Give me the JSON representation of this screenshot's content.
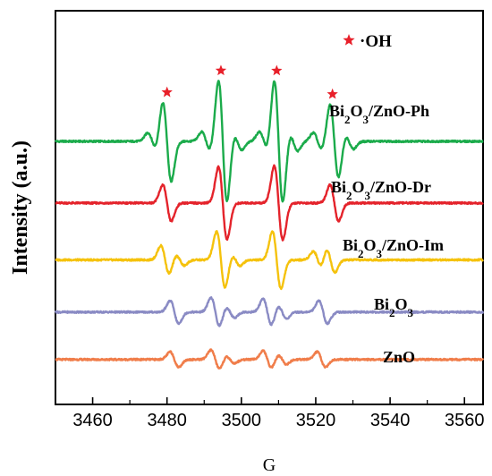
{
  "chart_data": {
    "type": "line",
    "title": "",
    "xlabel": "G",
    "ylabel": "Intensity (a.u.)",
    "xlim": [
      3450,
      3565
    ],
    "x_ticks": [
      "3460",
      "3480",
      "3500",
      "3520",
      "3540",
      "3560"
    ],
    "y_ticks_shown": false,
    "grid": false,
    "legend": {
      "placement": "top-right",
      "marker": "red-star",
      "color": "#e8202a",
      "label": "·OH"
    },
    "oh_marker_positions_G": [
      3480,
      3494.5,
      3509.5,
      3524.5
    ],
    "series": [
      {
        "name": "Bi2O3/ZnO-Ph",
        "name_main": "Bi",
        "name_sub1": "2",
        "name_mid": "O",
        "name_sub2": "3",
        "name_tail": "/ZnO-Ph",
        "color": "#1bab4b",
        "baseline": 0,
        "peaks": [
          {
            "x": 3476.0,
            "a": 0.9
          },
          {
            "x": 3480.0,
            "a": 4.2
          },
          {
            "x": 3490.5,
            "a": 1.0
          },
          {
            "x": 3495.0,
            "a": 6.4
          },
          {
            "x": 3499.0,
            "a": 0.9
          },
          {
            "x": 3506.0,
            "a": 1.0
          },
          {
            "x": 3510.0,
            "a": 6.5
          },
          {
            "x": 3514.0,
            "a": 1.0
          },
          {
            "x": 3520.5,
            "a": 0.9
          },
          {
            "x": 3525.0,
            "a": 3.9
          },
          {
            "x": 3529.0,
            "a": 0.8
          }
        ]
      },
      {
        "name": "Bi2O3/ZnO-Dr",
        "name_main": "Bi",
        "name_sub1": "2",
        "name_mid": "O",
        "name_sub2": "3",
        "name_tail": "/ZnO-Dr",
        "color": "#e4232b",
        "baseline": -6.5,
        "peaks": [
          {
            "x": 3480.0,
            "a": 1.9
          },
          {
            "x": 3495.0,
            "a": 3.8
          },
          {
            "x": 3510.0,
            "a": 3.9
          },
          {
            "x": 3525.0,
            "a": 1.9
          }
        ]
      },
      {
        "name": "Bi2O3/ZnO-Im",
        "name_main": "Bi",
        "name_sub1": "2",
        "name_mid": "O",
        "name_sub2": "3",
        "name_tail": "/ZnO-Im",
        "color": "#f5c20c",
        "baseline": -12.5,
        "peaks": [
          {
            "x": 3479.5,
            "a": 1.5
          },
          {
            "x": 3483.5,
            "a": 0.6
          },
          {
            "x": 3494.5,
            "a": 3.0
          },
          {
            "x": 3498.5,
            "a": 0.6
          },
          {
            "x": 3509.5,
            "a": 3.0
          },
          {
            "x": 3520.5,
            "a": 0.9
          },
          {
            "x": 3524.0,
            "a": 1.3
          }
        ]
      },
      {
        "name": "Bi2O3",
        "name_main": "Bi",
        "name_sub1": "2",
        "name_mid": "O",
        "name_sub2": "3",
        "name_tail": "",
        "color": "#8a8bc4",
        "baseline": -18.0,
        "peaks": [
          {
            "x": 3482.0,
            "a": 1.2
          },
          {
            "x": 3493.0,
            "a": 1.5
          },
          {
            "x": 3497.0,
            "a": 0.6
          },
          {
            "x": 3507.0,
            "a": 1.4
          },
          {
            "x": 3511.0,
            "a": 0.7
          },
          {
            "x": 3522.0,
            "a": 1.2
          }
        ]
      },
      {
        "name": "ZnO",
        "name_main": "ZnO",
        "name_sub1": "",
        "name_mid": "",
        "name_sub2": "",
        "name_tail": "",
        "color": "#f07d4a",
        "baseline": -23.0,
        "peaks": [
          {
            "x": 3482.0,
            "a": 0.8
          },
          {
            "x": 3493.0,
            "a": 1.0
          },
          {
            "x": 3497.0,
            "a": 0.4
          },
          {
            "x": 3507.0,
            "a": 0.9
          },
          {
            "x": 3511.0,
            "a": 0.5
          },
          {
            "x": 3521.5,
            "a": 0.8
          }
        ]
      }
    ]
  }
}
